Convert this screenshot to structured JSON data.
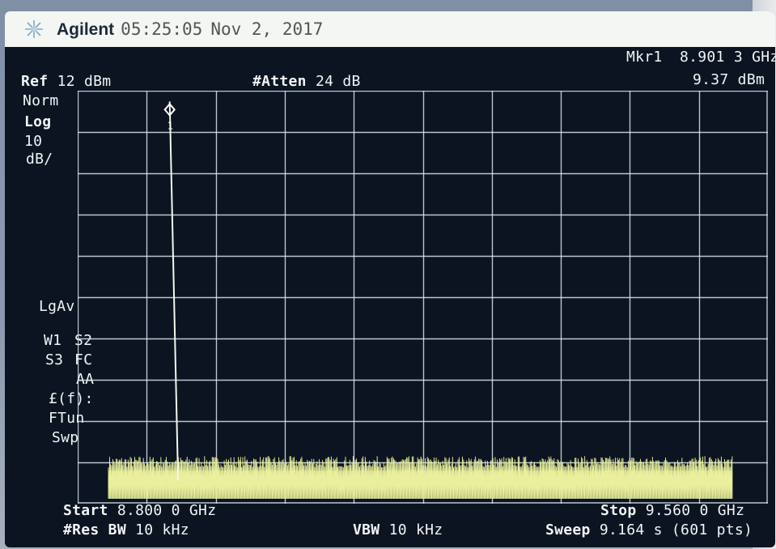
{
  "title_bar": {
    "brand": "Agilent",
    "time": "05:25:05",
    "date": "Nov 2, 2017"
  },
  "marker": {
    "name": "Mkr1",
    "frequency": "8.901 3 GHz",
    "amplitude": "9.37 dBm",
    "symbol": "1"
  },
  "header": {
    "ref_label": "Ref",
    "ref_value": "12 dBm",
    "atten_label": "#Atten",
    "atten_value": "24 dB"
  },
  "left_panel": {
    "norm": "Norm",
    "log": "Log",
    "scale_value": "10",
    "scale_unit": "dB/",
    "lgav": "LgAv",
    "w1": "W1",
    "s2": "S2",
    "s3": "S3",
    "fc": "FC",
    "aa": "AA",
    "ff": "£(f):",
    "ftun": "FTun",
    "swp": "Swp"
  },
  "footer": {
    "start_label": "Start",
    "start_value": "8.800 0 GHz",
    "stop_label": "Stop",
    "stop_value": "9.560 0 GHz",
    "res_bw_label": "#Res BW",
    "res_bw_value": "10 kHz",
    "vbw_label": "VBW",
    "vbw_value": "10 kHz",
    "sweep_label": "Sweep",
    "sweep_value": "9.164 s (601 pts)"
  },
  "colors": {
    "screen_bg": "#0b1420",
    "grid": "#d8e6ee",
    "trace": "#e9ef9c",
    "text": "#f2f4f6",
    "title_bar": "#f4f6f3"
  },
  "icons": {
    "brand_logo": "agilent-spark-icon",
    "marker_symbol": "diamond-marker-icon"
  },
  "chart_data": {
    "type": "line",
    "xlim": [
      8.8,
      9.56
    ],
    "ylim": [
      -88,
      12
    ],
    "x_unit": "GHz",
    "y_unit": "dBm",
    "grid": true,
    "grid_divisions_x": 10,
    "grid_divisions_y": 10,
    "noise_floor": -80,
    "series": [
      {
        "x": [
          8.8,
          8.901,
          8.9013,
          8.9016,
          9.56
        ],
        "y": [
          -80,
          -80,
          9.37,
          -80,
          -80
        ]
      }
    ],
    "marker_point": {
      "x": 8.9013,
      "y": 9.37
    }
  }
}
